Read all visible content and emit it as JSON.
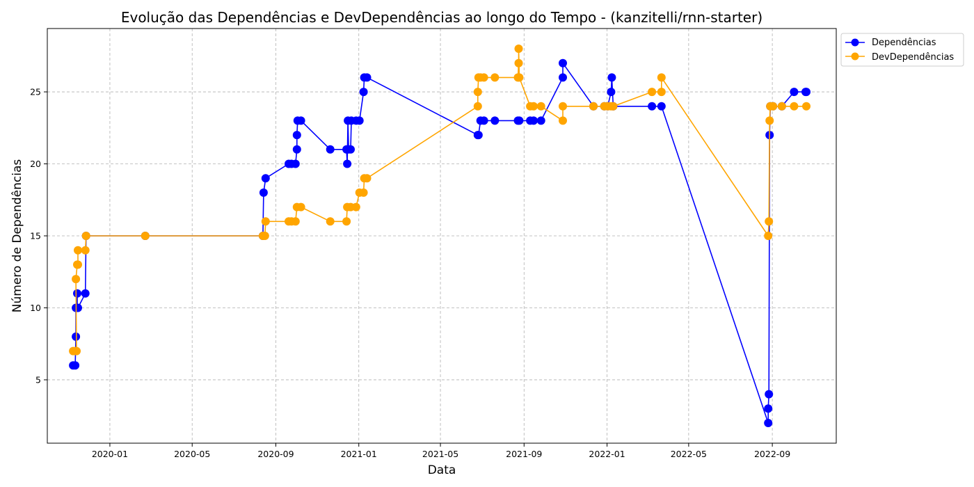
{
  "chart_data": {
    "type": "line",
    "title": "Evolução das Dependências e DevDependências ao longo do Tempo - (kanzitelli/rnn-starter)",
    "xlabel": "Data",
    "ylabel": "Número de Dependências",
    "xlim": [
      "2019-10-01",
      "2022-12-04"
    ],
    "ylim": [
      0.6,
      29.4
    ],
    "x_ticks": [
      "2020-01",
      "2020-05",
      "2020-09",
      "2021-01",
      "2021-05",
      "2021-09",
      "2022-01",
      "2022-05",
      "2022-09"
    ],
    "y_ticks": [
      5,
      10,
      15,
      20,
      25
    ],
    "grid": true,
    "legend_position": "outside-top-right",
    "series": [
      {
        "name": "Dependências",
        "color": "#0000ff",
        "points": [
          [
            "2019-11-08",
            6
          ],
          [
            "2019-11-11",
            6
          ],
          [
            "2019-11-12",
            8
          ],
          [
            "2019-11-12",
            10
          ],
          [
            "2019-11-14",
            11
          ],
          [
            "2019-11-14",
            10
          ],
          [
            "2019-11-15",
            10
          ],
          [
            "2019-11-26",
            11
          ],
          [
            "2019-11-27",
            15
          ],
          [
            "2020-02-22",
            15
          ],
          [
            "2020-08-13",
            15
          ],
          [
            "2020-08-14",
            18
          ],
          [
            "2020-08-17",
            19
          ],
          [
            "2020-09-20",
            20
          ],
          [
            "2020-09-24",
            20
          ],
          [
            "2020-09-30",
            20
          ],
          [
            "2020-10-02",
            21
          ],
          [
            "2020-10-02",
            22
          ],
          [
            "2020-10-03",
            23
          ],
          [
            "2020-10-08",
            23
          ],
          [
            "2020-11-20",
            21
          ],
          [
            "2020-12-14",
            21
          ],
          [
            "2020-12-15",
            20
          ],
          [
            "2020-12-16",
            23
          ],
          [
            "2020-12-17",
            21
          ],
          [
            "2020-12-20",
            21
          ],
          [
            "2020-12-21",
            23
          ],
          [
            "2020-12-28",
            23
          ],
          [
            "2021-01-02",
            23
          ],
          [
            "2021-01-08",
            25
          ],
          [
            "2021-01-09",
            26
          ],
          [
            "2021-01-13",
            26
          ],
          [
            "2021-06-25",
            22
          ],
          [
            "2021-06-26",
            22
          ],
          [
            "2021-06-29",
            23
          ],
          [
            "2021-07-04",
            23
          ],
          [
            "2021-07-20",
            23
          ],
          [
            "2021-08-23",
            23
          ],
          [
            "2021-08-25",
            23
          ],
          [
            "2021-09-10",
            23
          ],
          [
            "2021-09-15",
            23
          ],
          [
            "2021-09-26",
            23
          ],
          [
            "2021-10-28",
            26
          ],
          [
            "2021-10-28",
            27
          ],
          [
            "2021-12-12",
            24
          ],
          [
            "2021-12-28",
            24
          ],
          [
            "2022-01-02",
            24
          ],
          [
            "2022-01-07",
            25
          ],
          [
            "2022-01-08",
            26
          ],
          [
            "2022-01-10",
            24
          ],
          [
            "2022-03-08",
            24
          ],
          [
            "2022-03-22",
            24
          ],
          [
            "2022-08-26",
            2
          ],
          [
            "2022-08-26",
            3
          ],
          [
            "2022-08-27",
            4
          ],
          [
            "2022-08-28",
            22
          ],
          [
            "2022-08-29",
            24
          ],
          [
            "2022-09-02",
            24
          ],
          [
            "2022-09-15",
            24
          ],
          [
            "2022-10-03",
            25
          ],
          [
            "2022-10-20",
            25
          ],
          [
            "2022-10-21",
            25
          ]
        ]
      },
      {
        "name": "DevDependências",
        "color": "#ffa500",
        "points": [
          [
            "2019-11-08",
            7
          ],
          [
            "2019-11-11",
            7
          ],
          [
            "2019-11-13",
            7
          ],
          [
            "2019-11-12",
            12
          ],
          [
            "2019-11-14",
            13
          ],
          [
            "2019-11-15",
            13
          ],
          [
            "2019-11-15",
            14
          ],
          [
            "2019-11-26",
            14
          ],
          [
            "2019-11-27",
            15
          ],
          [
            "2020-02-22",
            15
          ],
          [
            "2020-08-13",
            15
          ],
          [
            "2020-08-16",
            15
          ],
          [
            "2020-08-17",
            16
          ],
          [
            "2020-09-20",
            16
          ],
          [
            "2020-09-24",
            16
          ],
          [
            "2020-09-30",
            16
          ],
          [
            "2020-10-02",
            17
          ],
          [
            "2020-10-08",
            17
          ],
          [
            "2020-11-20",
            16
          ],
          [
            "2020-12-14",
            16
          ],
          [
            "2020-12-15",
            17
          ],
          [
            "2020-12-20",
            17
          ],
          [
            "2020-12-28",
            17
          ],
          [
            "2021-01-02",
            18
          ],
          [
            "2021-01-08",
            18
          ],
          [
            "2021-01-09",
            19
          ],
          [
            "2021-01-13",
            19
          ],
          [
            "2021-06-25",
            24
          ],
          [
            "2021-06-25",
            25
          ],
          [
            "2021-06-26",
            26
          ],
          [
            "2021-06-29",
            26
          ],
          [
            "2021-07-04",
            26
          ],
          [
            "2021-07-20",
            26
          ],
          [
            "2021-08-23",
            26
          ],
          [
            "2021-08-24",
            27
          ],
          [
            "2021-08-24",
            28
          ],
          [
            "2021-08-25",
            26
          ],
          [
            "2021-09-10",
            24
          ],
          [
            "2021-09-15",
            24
          ],
          [
            "2021-09-26",
            24
          ],
          [
            "2021-10-28",
            23
          ],
          [
            "2021-10-28",
            24
          ],
          [
            "2021-12-12",
            24
          ],
          [
            "2021-12-28",
            24
          ],
          [
            "2022-01-02",
            24
          ],
          [
            "2022-01-07",
            24
          ],
          [
            "2022-01-10",
            24
          ],
          [
            "2022-03-08",
            25
          ],
          [
            "2022-03-22",
            25
          ],
          [
            "2022-03-22",
            26
          ],
          [
            "2022-08-26",
            15
          ],
          [
            "2022-08-27",
            16
          ],
          [
            "2022-08-28",
            23
          ],
          [
            "2022-08-29",
            24
          ],
          [
            "2022-09-02",
            24
          ],
          [
            "2022-09-15",
            24
          ],
          [
            "2022-10-03",
            24
          ],
          [
            "2022-10-21",
            24
          ]
        ]
      }
    ]
  }
}
